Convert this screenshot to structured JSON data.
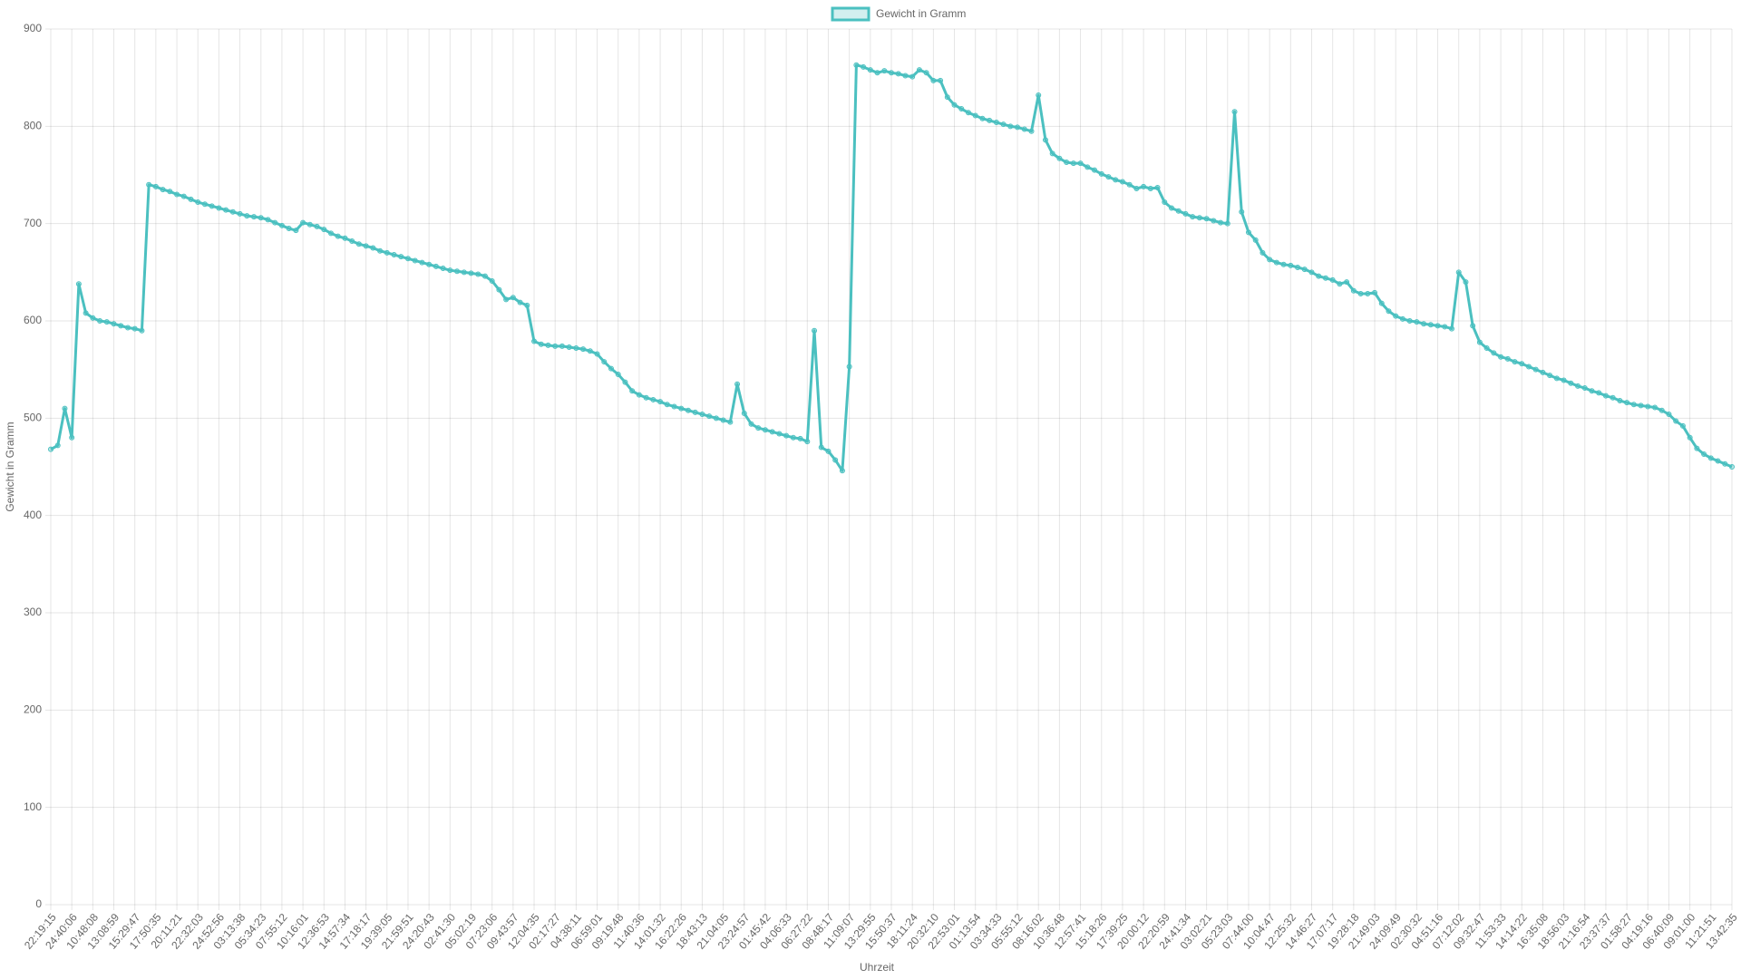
{
  "chart_data": {
    "type": "line",
    "x_label": "Uhrzeit",
    "y_label": "Gewicht in Gramm",
    "legend": "top",
    "grid": true,
    "ylim": [
      0,
      900
    ],
    "yticks": [
      0,
      100,
      200,
      300,
      400,
      500,
      600,
      700,
      800,
      900
    ],
    "categories": [
      "22:19:15",
      null,
      null,
      "24:40:06",
      null,
      null,
      "10:48:08",
      null,
      null,
      "13:08:59",
      null,
      null,
      "15:29:47",
      null,
      null,
      "17:50:35",
      null,
      null,
      "20:11:21",
      null,
      null,
      "22:32:03",
      null,
      null,
      "24:52:56",
      null,
      null,
      "03:13:38",
      null,
      null,
      "05:34:23",
      null,
      null,
      "07:55:12",
      null,
      null,
      "10:16:01",
      null,
      null,
      "12:36:53",
      null,
      null,
      "14:57:34",
      null,
      null,
      "17:18:17",
      null,
      null,
      "19:39:05",
      null,
      null,
      "21:59:51",
      null,
      null,
      "24:20:43",
      null,
      null,
      "02:41:30",
      null,
      null,
      "05:02:19",
      null,
      null,
      "07:23:06",
      null,
      null,
      "09:43:57",
      null,
      null,
      "12:04:35",
      null,
      null,
      "02:17:27",
      null,
      null,
      "04:38:11",
      null,
      null,
      "06:59:01",
      null,
      null,
      "09:19:48",
      null,
      null,
      "11:40:36",
      null,
      null,
      "14:01:32",
      null,
      null,
      "16:22:26",
      null,
      null,
      "18:43:13",
      null,
      null,
      "21:04:05",
      null,
      null,
      "23:24:57",
      null,
      null,
      "01:45:42",
      null,
      null,
      "04:06:33",
      null,
      null,
      "06:27:22",
      null,
      null,
      "08:48:17",
      null,
      null,
      "11:09:07",
      null,
      null,
      "13:29:55",
      null,
      null,
      "15:50:37",
      null,
      null,
      "18:11:24",
      null,
      null,
      "20:32:10",
      null,
      null,
      "22:53:01",
      null,
      null,
      "01:13:54",
      null,
      null,
      "03:34:33",
      null,
      null,
      "05:55:12",
      null,
      null,
      "08:16:02",
      null,
      null,
      "10:36:48",
      null,
      null,
      "12:57:41",
      null,
      null,
      "15:18:26",
      null,
      null,
      "17:39:25",
      null,
      null,
      "20:00:12",
      null,
      null,
      "22:20:59",
      null,
      null,
      "24:41:34",
      null,
      null,
      "03:02:21",
      null,
      null,
      "05:23:03",
      null,
      null,
      "07:44:00",
      null,
      null,
      "10:04:47",
      null,
      null,
      "12:25:32",
      null,
      null,
      "14:46:27",
      null,
      null,
      "17:07:17",
      null,
      null,
      "19:28:18",
      null,
      null,
      "21:49:03",
      null,
      null,
      "24:09:49",
      null,
      null,
      "02:30:32",
      null,
      null,
      "04:51:16",
      null,
      null,
      "07:12:02",
      null,
      null,
      "09:32:47",
      null,
      null,
      "11:53:33",
      null,
      null,
      "14:14:22",
      null,
      null,
      "16:35:08",
      null,
      null,
      "18:56:03",
      null,
      null,
      "21:16:54",
      null,
      null,
      "23:37:37",
      null,
      null,
      "01:58:27",
      null,
      null,
      "04:19:16",
      null,
      null,
      "06:40:09",
      null,
      null,
      "09:01:00",
      null,
      null,
      "11:21:51",
      null,
      null,
      "13:42:35"
    ],
    "series": [
      {
        "name": "Gewicht in Gramm",
        "color": "#4bc0c0",
        "values": [
          468,
          472,
          510,
          480,
          638,
          608,
          603,
          600,
          599,
          597,
          595,
          593,
          592,
          590,
          740,
          738,
          735,
          733,
          730,
          728,
          725,
          722,
          720,
          718,
          716,
          714,
          712,
          710,
          708,
          707,
          706,
          704,
          701,
          698,
          695,
          693,
          701,
          699,
          697,
          694,
          690,
          687,
          685,
          682,
          679,
          677,
          675,
          672,
          670,
          668,
          666,
          664,
          662,
          660,
          658,
          656,
          654,
          652,
          651,
          650,
          649,
          648,
          646,
          641,
          632,
          622,
          624,
          619,
          616,
          579,
          576,
          575,
          574,
          574,
          573,
          572,
          571,
          569,
          566,
          558,
          551,
          545,
          537,
          528,
          524,
          521,
          519,
          517,
          514,
          512,
          510,
          508,
          506,
          504,
          502,
          500,
          498,
          496,
          535,
          505,
          494,
          490,
          488,
          486,
          484,
          482,
          480,
          479,
          476,
          590,
          470,
          466,
          457,
          446,
          553,
          863,
          861,
          858,
          855,
          857,
          855,
          854,
          852,
          851,
          858,
          855,
          847,
          847,
          830,
          822,
          818,
          814,
          811,
          808,
          806,
          804,
          802,
          800,
          799,
          797,
          795,
          832,
          786,
          772,
          767,
          763,
          762,
          762,
          758,
          755,
          751,
          748,
          745,
          743,
          740,
          736,
          738,
          736,
          737,
          722,
          716,
          713,
          710,
          707,
          706,
          705,
          703,
          701,
          700,
          815,
          712,
          691,
          683,
          670,
          663,
          660,
          658,
          657,
          655,
          653,
          650,
          646,
          644,
          642,
          638,
          640,
          631,
          628,
          628,
          629,
          618,
          610,
          605,
          602,
          600,
          599,
          597,
          596,
          595,
          594,
          592,
          650,
          640,
          595,
          578,
          572,
          567,
          563,
          561,
          558,
          556,
          553,
          550,
          547,
          544,
          541,
          539,
          536,
          533,
          531,
          528,
          526,
          523,
          521,
          518,
          516,
          514,
          513,
          512,
          511,
          508,
          504,
          497,
          492,
          480,
          469,
          463,
          459,
          456,
          453,
          450
        ]
      }
    ]
  }
}
